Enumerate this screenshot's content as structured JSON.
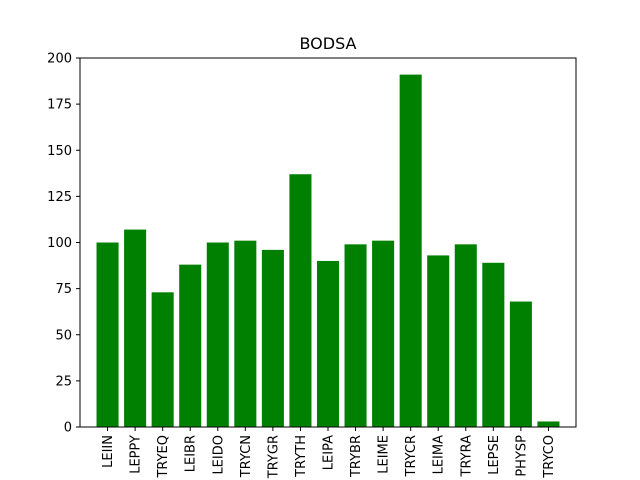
{
  "chart_data": {
    "type": "bar",
    "title": "BODSA",
    "xlabel": "",
    "ylabel": "",
    "categories": [
      "LEIIN",
      "LEPPY",
      "TRYEQ",
      "LEIBR",
      "LEIDO",
      "TRYCN",
      "TRYGR",
      "TRYTH",
      "LEIPA",
      "TRYBR",
      "LEIME",
      "TRYCR",
      "LEIMA",
      "TRYRA",
      "LEPSE",
      "PHYSP",
      "TRYCO"
    ],
    "values": [
      100,
      107,
      73,
      88,
      100,
      101,
      96,
      137,
      90,
      99,
      101,
      191,
      93,
      99,
      89,
      68,
      3
    ],
    "ylim": [
      0,
      200
    ],
    "yticks": [
      0,
      25,
      50,
      75,
      100,
      125,
      150,
      175,
      200
    ],
    "bar_color": "#008000",
    "grid": false,
    "legend": "none"
  }
}
